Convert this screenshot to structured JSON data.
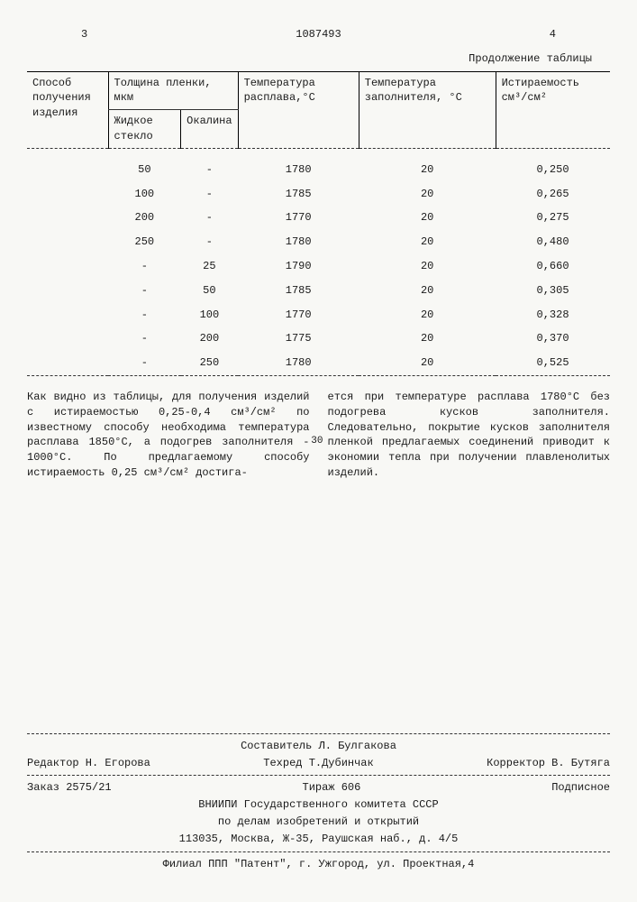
{
  "header": {
    "page_left": "3",
    "doc_number": "1087493",
    "page_right": "4"
  },
  "table": {
    "continuation": "Продолжение таблицы",
    "headers": {
      "col1": "Способ получения изделия",
      "col2_group": "Толщина пленки, мкм",
      "col2a": "Жидкое стекло",
      "col2b": "Окалина",
      "col3": "Температура расплава,°С",
      "col4": "Температура заполнителя, °С",
      "col5": "Истираемость см³/см²"
    },
    "rows": [
      {
        "c1": "",
        "c2a": "50",
        "c2b": "-",
        "c3": "1780",
        "c4": "20",
        "c5": "0,250"
      },
      {
        "c1": "",
        "c2a": "100",
        "c2b": "-",
        "c3": "1785",
        "c4": "20",
        "c5": "0,265"
      },
      {
        "c1": "",
        "c2a": "200",
        "c2b": "-",
        "c3": "1770",
        "c4": "20",
        "c5": "0,275"
      },
      {
        "c1": "",
        "c2a": "250",
        "c2b": "-",
        "c3": "1780",
        "c4": "20",
        "c5": "0,480"
      },
      {
        "c1": "",
        "c2a": "-",
        "c2b": "25",
        "c3": "1790",
        "c4": "20",
        "c5": "0,660"
      },
      {
        "c1": "",
        "c2a": "-",
        "c2b": "50",
        "c3": "1785",
        "c4": "20",
        "c5": "0,305"
      },
      {
        "c1": "",
        "c2a": "-",
        "c2b": "100",
        "c3": "1770",
        "c4": "20",
        "c5": "0,328"
      },
      {
        "c1": "",
        "c2a": "-",
        "c2b": "200",
        "c3": "1775",
        "c4": "20",
        "c5": "0,370"
      },
      {
        "c1": "",
        "c2a": "-",
        "c2b": "250",
        "c3": "1780",
        "c4": "20",
        "c5": "0,525"
      }
    ]
  },
  "body": {
    "line_marker": "30",
    "left_col": "Как видно из таблицы, для получения изделий с истираемостью 0,25-0,4 см³/см² по известному способу необходима температура расплава 1850°С, а подогрев заполнителя - 1000°С. По предлагаемому способу истираемость 0,25 см³/см² достига-",
    "right_col": "ется при температуре расплава 1780°С без подогрева кусков заполнителя. Следовательно, покрытие кусков заполнителя пленкой предлагаемых соединений приводит к экономии тепла при получении плавленолитых изделий."
  },
  "footer": {
    "compiler": "Составитель Л. Булгакова",
    "editor": "Редактор Н. Егорова",
    "techred": "Техред Т.Дубинчак",
    "corrector": "Корректор В. Бутяга",
    "order": "Заказ 2575/21",
    "tirage": "Тираж 606",
    "subscription": "Подписное",
    "org1": "ВНИИПИ Государственного комитета СССР",
    "org2": "по делам изобретений и открытий",
    "address1": "113035, Москва, Ж-35, Раушская наб., д. 4/5",
    "branch": "Филиал ППП \"Патент\", г. Ужгород, ул. Проектная,4"
  }
}
